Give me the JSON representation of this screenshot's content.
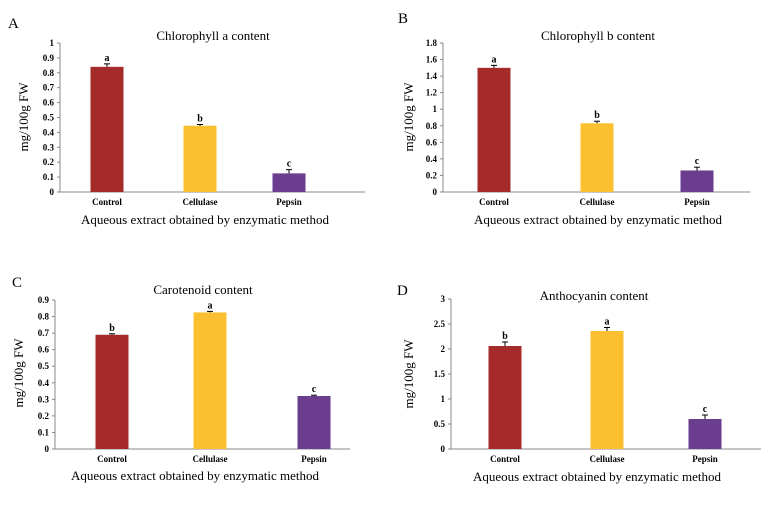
{
  "chart_data": [
    {
      "panel": "A",
      "type": "bar",
      "title": "Chlorophyll a content",
      "ylabel": "mg/100g FW",
      "xlabel": "Aqueous extract obtained by enzymatic method",
      "categories": [
        "Control",
        "Cellulase",
        "Pepsin"
      ],
      "values": [
        0.84,
        0.445,
        0.125
      ],
      "errors": [
        0.02,
        0.008,
        0.025
      ],
      "letters": [
        "a",
        "b",
        "c"
      ],
      "colors": [
        "#a52a2a",
        "#fbbf2f",
        "#6a3d8f"
      ],
      "ylim": [
        0,
        1
      ],
      "yticks": [
        "0",
        "0.1",
        "0.2",
        "0.3",
        "0.4",
        "0.5",
        "0.6",
        "0.7",
        "0.8",
        "0.9",
        "1"
      ],
      "ytick_values": [
        0,
        0.1,
        0.2,
        0.3,
        0.4,
        0.5,
        0.6,
        0.7,
        0.8,
        0.9,
        1
      ]
    },
    {
      "panel": "B",
      "type": "bar",
      "title": "Chlorophyll b content",
      "ylabel": "mg/100g FW",
      "xlabel": "Aqueous extract obtained by enzymatic method",
      "categories": [
        "Control",
        "Cellulase",
        "Pepsin"
      ],
      "values": [
        1.5,
        0.83,
        0.26
      ],
      "errors": [
        0.03,
        0.025,
        0.04
      ],
      "letters": [
        "a",
        "b",
        "c"
      ],
      "colors": [
        "#a52a2a",
        "#fbbf2f",
        "#6a3d8f"
      ],
      "ylim": [
        0,
        1.8
      ],
      "yticks": [
        "0",
        "0.2",
        "0.4",
        "0.6",
        "0.8",
        "1",
        "1.2",
        "1.4",
        "1.6",
        "1.8"
      ],
      "ytick_values": [
        0,
        0.2,
        0.4,
        0.6,
        0.8,
        1,
        1.2,
        1.4,
        1.6,
        1.8
      ]
    },
    {
      "panel": "C",
      "type": "bar",
      "title": "Carotenoid content",
      "ylabel": "mg/100g FW",
      "xlabel": "Aqueous extract obtained by enzymatic method",
      "categories": [
        "Control",
        "Cellulase",
        "Pepsin"
      ],
      "values": [
        0.69,
        0.825,
        0.32
      ],
      "errors": [
        0.006,
        0.006,
        0.005
      ],
      "letters": [
        "b",
        "a",
        "c"
      ],
      "colors": [
        "#a52a2a",
        "#fbbf2f",
        "#6a3d8f"
      ],
      "ylim": [
        0,
        0.9
      ],
      "yticks": [
        "0",
        "0.1",
        "0.2",
        "0.3",
        "0.4",
        "0.5",
        "0.6",
        "0.7",
        "0.8",
        "0.9"
      ],
      "ytick_values": [
        0,
        0.1,
        0.2,
        0.3,
        0.4,
        0.5,
        0.6,
        0.7,
        0.8,
        0.9
      ]
    },
    {
      "panel": "D",
      "type": "bar",
      "title": "Anthocyanin content",
      "ylabel": "mg/100g FW",
      "xlabel": "Aqueous extract obtained by enzymatic method",
      "categories": [
        "Control",
        "Cellulase",
        "Pepsin"
      ],
      "values": [
        2.06,
        2.36,
        0.6
      ],
      "errors": [
        0.08,
        0.07,
        0.08
      ],
      "letters": [
        "b",
        "a",
        "c"
      ],
      "colors": [
        "#a52a2a",
        "#fbbf2f",
        "#6a3d8f"
      ],
      "ylim": [
        0,
        3
      ],
      "yticks": [
        "0",
        "0.5",
        "1",
        "1.5",
        "2",
        "2.5",
        "3"
      ],
      "ytick_values": [
        0,
        0.5,
        1,
        1.5,
        2,
        2.5,
        3
      ]
    }
  ]
}
